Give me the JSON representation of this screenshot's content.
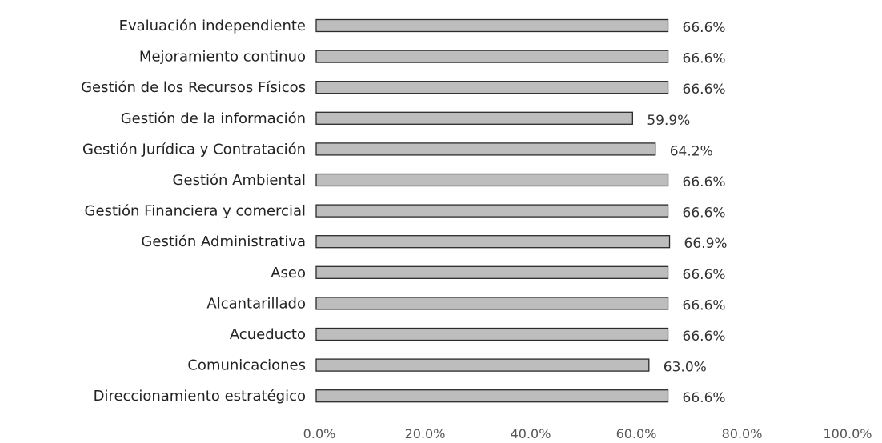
{
  "chart_data": {
    "type": "bar",
    "orientation": "horizontal",
    "title": "",
    "xlabel": "",
    "ylabel": "",
    "xlim": [
      0,
      100
    ],
    "grid": false,
    "legend": "none",
    "bar_color": "#bdbdbd",
    "bar_edge_color": "#2b2b2b",
    "categories": [
      "Evaluación independiente",
      "Mejoramiento continuo",
      "Gestión de los Recursos Físicos",
      "Gestión de la información",
      "Gestión Jurídica y Contratación",
      "Gestión Ambiental",
      "Gestión Financiera y comercial",
      "Gestión Administrativa",
      "Aseo",
      "Alcantarillado",
      "Acueducto",
      "Comunicaciones",
      "Direccionamiento estratégico"
    ],
    "values": [
      66.6,
      66.6,
      66.6,
      59.9,
      64.2,
      66.6,
      66.6,
      66.9,
      66.6,
      66.6,
      66.6,
      63.0,
      66.6
    ],
    "value_labels": [
      "66.6%",
      "66.6%",
      "66.6%",
      "59.9%",
      "64.2%",
      "66.6%",
      "66.6%",
      "66.9%",
      "66.6%",
      "66.6%",
      "66.6%",
      "63.0%",
      "66.6%"
    ],
    "x_ticks": [
      "0.0%",
      "20.0%",
      "40.0%",
      "60.0%",
      "80.0%",
      "100.0%"
    ]
  }
}
